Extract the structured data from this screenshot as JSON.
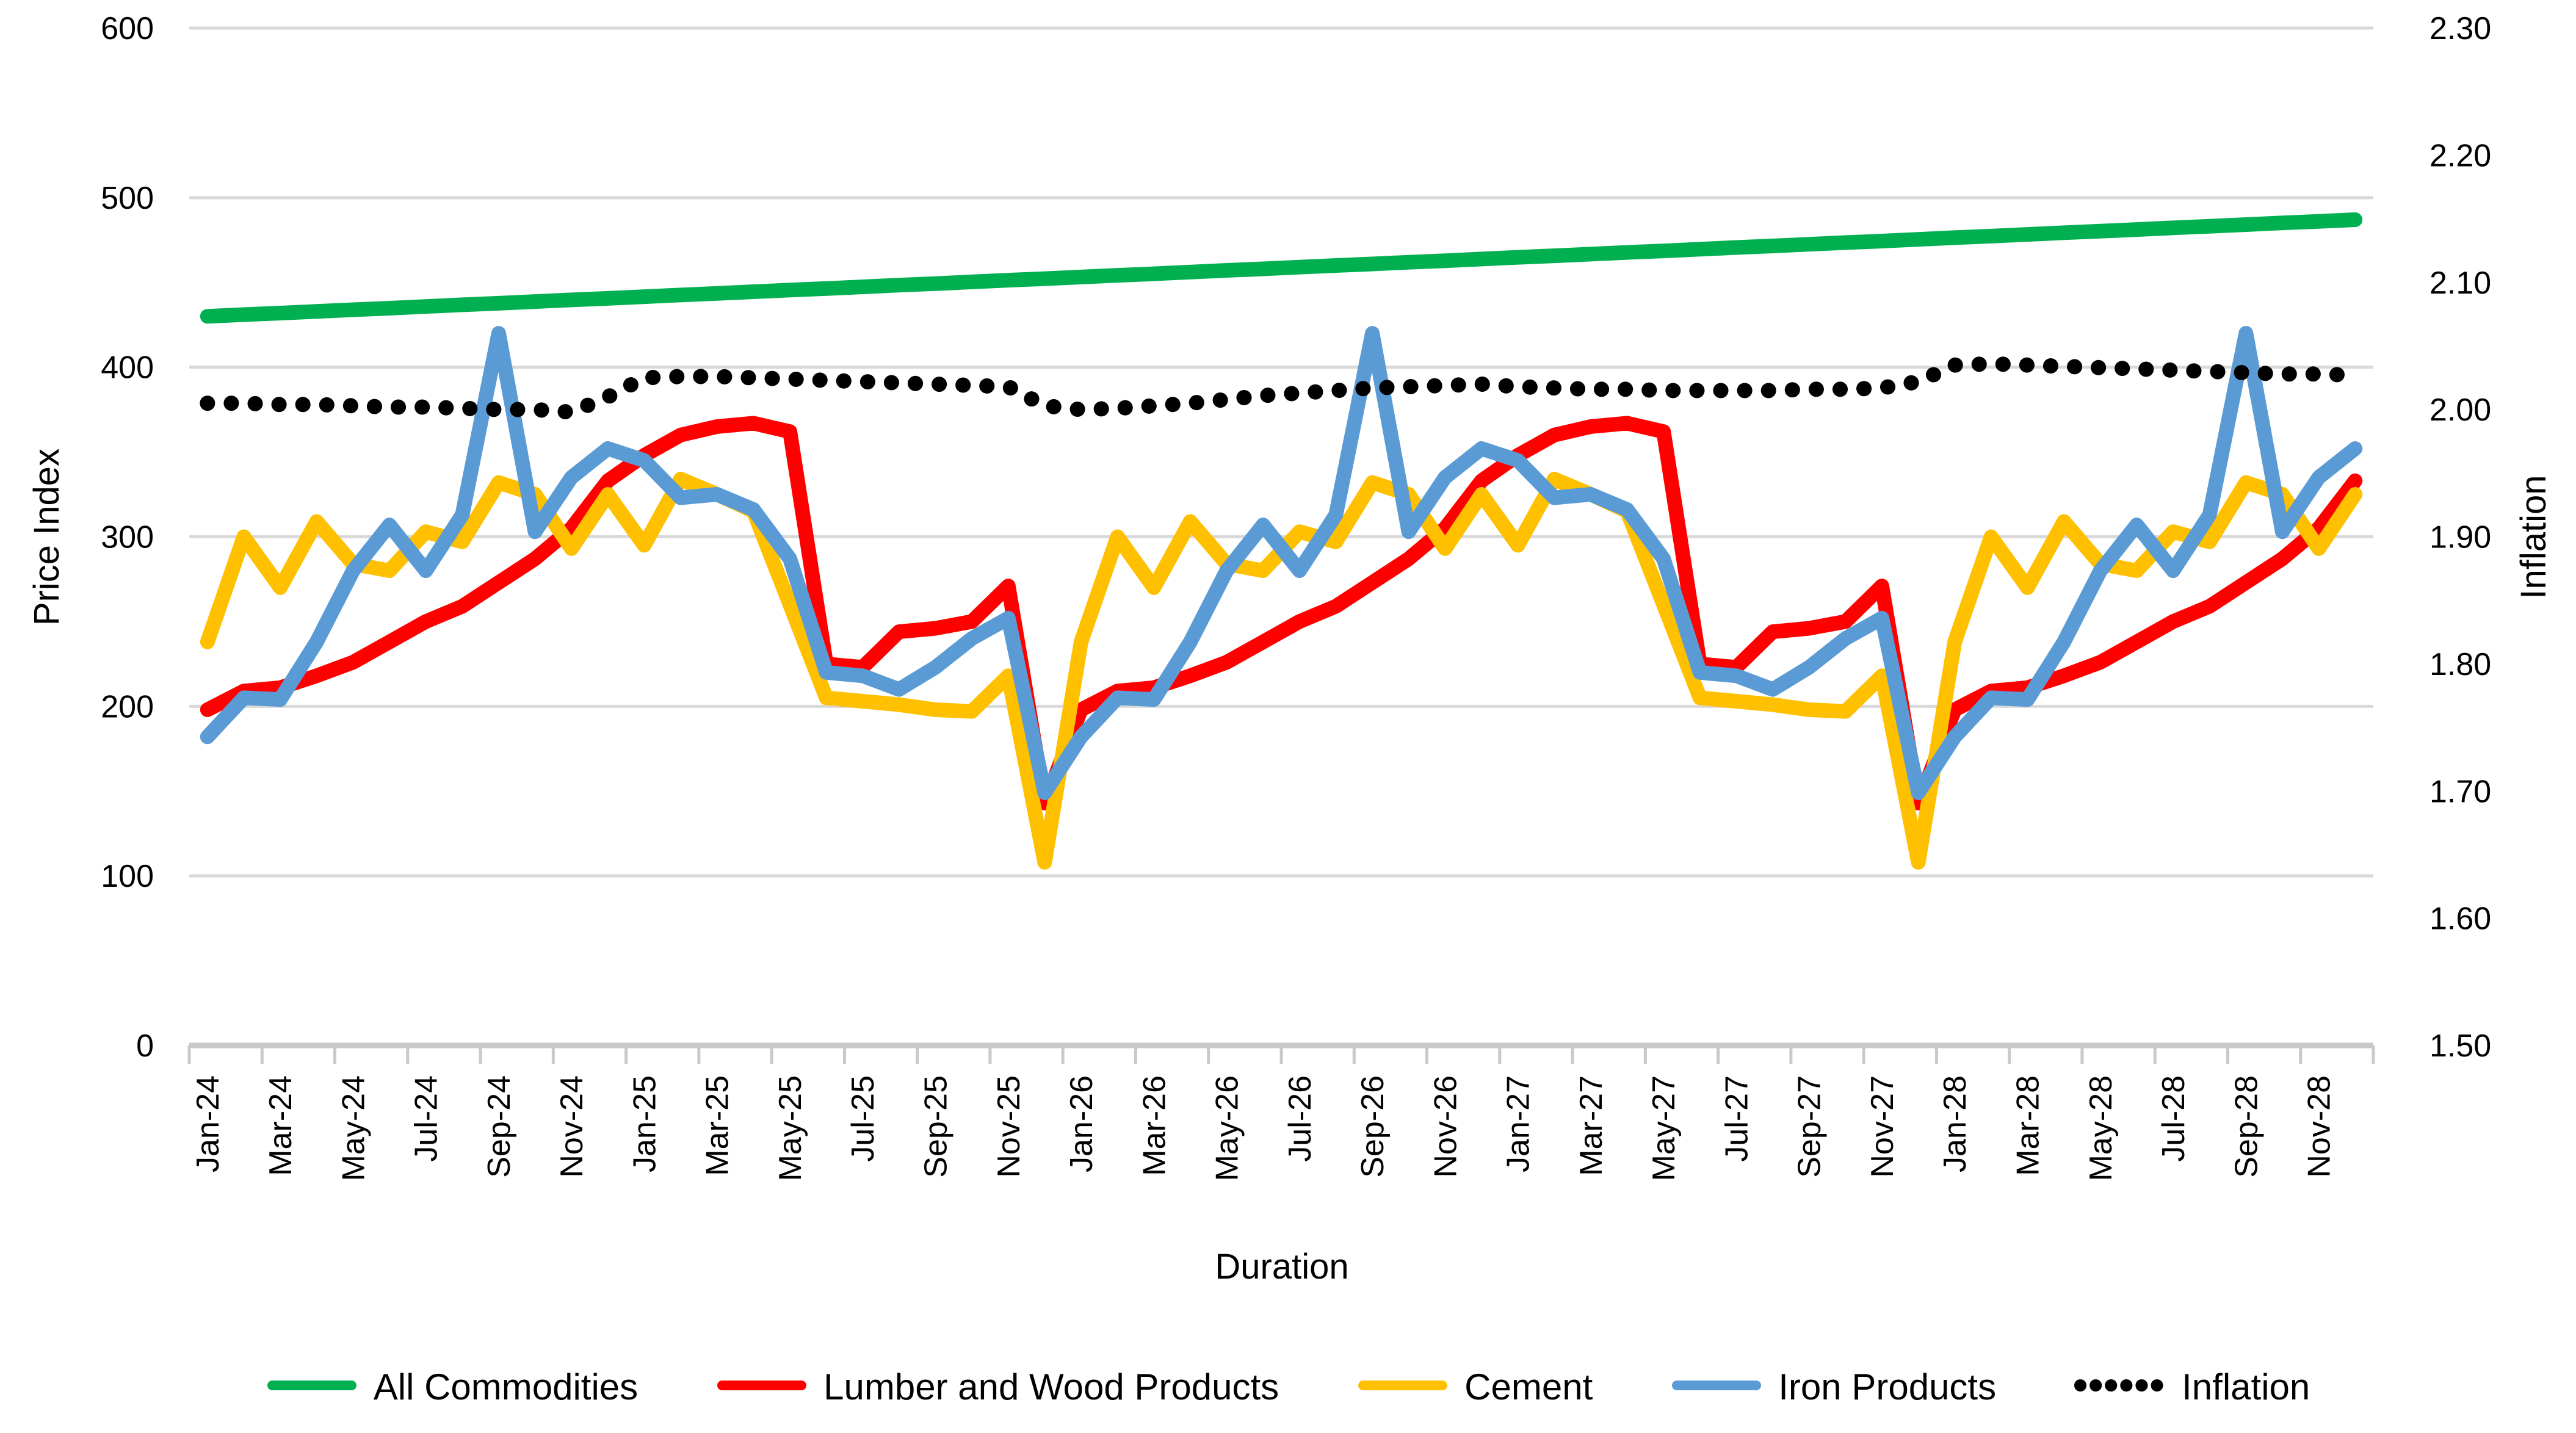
{
  "axes": {
    "left": {
      "title": "Price Index",
      "ticks": [
        "0",
        "100",
        "200",
        "300",
        "400",
        "500",
        "600"
      ]
    },
    "right": {
      "title": "Inflation",
      "ticks": [
        "1.50",
        "1.60",
        "1.70",
        "1.80",
        "1.90",
        "2.00",
        "2.10",
        "2.20",
        "2.30"
      ]
    },
    "x": {
      "title": "Duration",
      "tick_labels": [
        "Jan-24",
        "Mar-24",
        "May-24",
        "Jul-24",
        "Sep-24",
        "Nov-24",
        "Jan-25",
        "Mar-25",
        "May-25",
        "Jul-25",
        "Sep-25",
        "Nov-25",
        "Jan-26",
        "Mar-26",
        "May-26",
        "Jul-26",
        "Sep-26",
        "Nov-26",
        "Jan-27",
        "Mar-27",
        "May-27",
        "Jul-27",
        "Sep-27",
        "Nov-27",
        "Jan-28",
        "Mar-28",
        "May-28",
        "Jul-28",
        "Sep-28",
        "Nov-28"
      ]
    }
  },
  "legend": {
    "items": [
      {
        "label": "All Commodities",
        "color": "#00B050",
        "style": "solid"
      },
      {
        "label": "Lumber and Wood Products",
        "color": "#FF0000",
        "style": "solid"
      },
      {
        "label": "Cement",
        "color": "#FFC000",
        "style": "solid"
      },
      {
        "label": "Iron Products",
        "color": "#5B9BD5",
        "style": "solid"
      },
      {
        "label": "Inflation",
        "color": "#000000",
        "style": "dotted"
      }
    ]
  },
  "colors": {
    "grid": "#D9D9D9",
    "axis_line": "#C9C9C9",
    "text": "#000000"
  },
  "chart_data": {
    "type": "line",
    "title": "",
    "xlabel": "Duration",
    "ylabel_left": "Price Index",
    "ylabel_right": "Inflation",
    "y_left_range": [
      0,
      600
    ],
    "y_right_range": [
      1.5,
      2.3
    ],
    "grid": true,
    "legend_position": "bottom",
    "x": [
      "Jan-24",
      "Feb-24",
      "Mar-24",
      "Apr-24",
      "May-24",
      "Jun-24",
      "Jul-24",
      "Aug-24",
      "Sep-24",
      "Oct-24",
      "Nov-24",
      "Dec-24",
      "Jan-25",
      "Feb-25",
      "Mar-25",
      "Apr-25",
      "May-25",
      "Jun-25",
      "Jul-25",
      "Aug-25",
      "Sep-25",
      "Oct-25",
      "Nov-25",
      "Dec-25",
      "Jan-26",
      "Feb-26",
      "Mar-26",
      "Apr-26",
      "May-26",
      "Jun-26",
      "Jul-26",
      "Aug-26",
      "Sep-26",
      "Oct-26",
      "Nov-26",
      "Dec-26",
      "Jan-27",
      "Feb-27",
      "Mar-27",
      "Apr-27",
      "May-27",
      "Jun-27",
      "Jul-27",
      "Aug-27",
      "Sep-27",
      "Oct-27",
      "Nov-27",
      "Dec-27",
      "Jan-28",
      "Feb-28",
      "Mar-28",
      "Apr-28",
      "May-28",
      "Jun-28",
      "Jul-28",
      "Aug-28",
      "Sep-28",
      "Oct-28",
      "Nov-28",
      "Dec-28"
    ],
    "series": [
      {
        "name": "All Commodities",
        "axis": "left",
        "color": "#00B050",
        "style": "solid",
        "values": [
          430,
          431,
          431.9,
          432.9,
          433.9,
          434.8,
          435.8,
          436.8,
          437.7,
          438.7,
          439.7,
          440.6,
          441.6,
          442.6,
          443.5,
          444.5,
          445.5,
          446.4,
          447.4,
          448.4,
          449.3,
          450.3,
          451.3,
          452.2,
          453.2,
          454.2,
          455.1,
          456.1,
          457.1,
          458,
          459,
          460,
          460.9,
          461.9,
          462.8,
          463.8,
          464.8,
          465.7,
          466.7,
          467.7,
          468.6,
          469.6,
          470.6,
          471.5,
          472.5,
          473.5,
          474.4,
          475.4,
          476.4,
          477.3,
          478.3,
          479.3,
          480.2,
          481.2,
          482.2,
          483.1,
          484.1,
          485.1,
          486,
          487
        ]
      },
      {
        "name": "Lumber and Wood Products",
        "axis": "left",
        "color": "#FF0000",
        "style": "solid",
        "values": [
          198,
          209,
          211,
          218,
          226,
          238,
          250,
          259,
          273,
          287,
          305,
          333,
          348,
          360,
          365,
          367,
          362,
          225,
          223,
          244,
          246,
          250,
          271,
          143,
          198,
          209,
          211,
          218,
          226,
          238,
          250,
          259,
          273,
          287,
          305,
          333,
          348,
          360,
          365,
          367,
          362,
          225,
          223,
          244,
          246,
          250,
          271,
          143,
          198,
          209,
          211,
          218,
          226,
          238,
          250,
          259,
          273,
          287,
          305,
          333
        ]
      },
      {
        "name": "Cement",
        "axis": "left",
        "color": "#FFC000",
        "style": "solid",
        "values": [
          238,
          300,
          270,
          309,
          284,
          280,
          303,
          297,
          332,
          325,
          293,
          325,
          295,
          334,
          325,
          315,
          260,
          205,
          203,
          201,
          198,
          197,
          218,
          108,
          238,
          300,
          270,
          309,
          284,
          280,
          303,
          297,
          332,
          325,
          293,
          325,
          295,
          334,
          325,
          315,
          260,
          205,
          203,
          201,
          198,
          197,
          218,
          108,
          238,
          300,
          270,
          309,
          284,
          280,
          303,
          297,
          332,
          325,
          293,
          325
        ]
      },
      {
        "name": "Iron Products",
        "axis": "left",
        "color": "#5B9BD5",
        "style": "solid",
        "values": [
          182,
          205,
          204,
          238,
          280,
          307,
          280,
          313,
          420,
          303,
          335,
          352,
          345,
          323,
          325,
          316,
          287,
          220,
          218,
          210,
          223,
          240,
          252,
          149,
          182,
          205,
          204,
          238,
          280,
          307,
          280,
          313,
          420,
          303,
          335,
          352,
          345,
          323,
          325,
          316,
          287,
          220,
          218,
          210,
          223,
          240,
          252,
          149,
          182,
          205,
          204,
          238,
          280,
          307,
          280,
          313,
          420,
          303,
          335,
          352
        ]
      },
      {
        "name": "Inflation",
        "axis": "right",
        "color": "#000000",
        "style": "dotted",
        "values": [
          2.005,
          2.005,
          2.004,
          2.004,
          2.003,
          2.002,
          2.002,
          2.001,
          2.0,
          2.0,
          1.998,
          2.01,
          2.025,
          2.026,
          2.026,
          2.025,
          2.024,
          2.023,
          2.022,
          2.021,
          2.02,
          2.019,
          2.018,
          2.003,
          2.0,
          2.001,
          2.003,
          2.005,
          2.008,
          2.011,
          2.013,
          2.015,
          2.017,
          2.018,
          2.019,
          2.02,
          2.018,
          2.017,
          2.016,
          2.016,
          2.015,
          2.015,
          2.015,
          2.015,
          2.016,
          2.016,
          2.017,
          2.022,
          2.035,
          2.036,
          2.035,
          2.034,
          2.033,
          2.032,
          2.031,
          2.03,
          2.029,
          2.028,
          2.028,
          2.027
        ]
      }
    ]
  }
}
